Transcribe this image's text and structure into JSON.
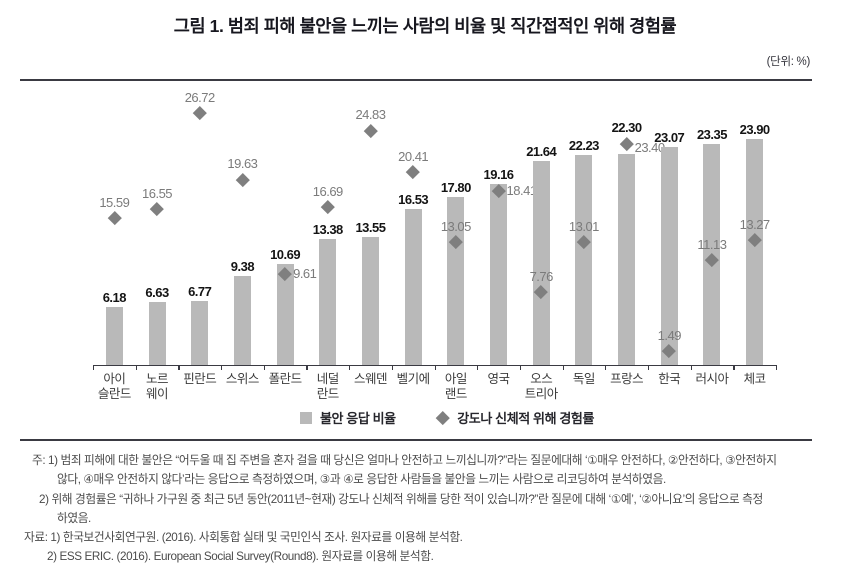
{
  "header": {
    "title": "그림 1. 범죄 피해 불안을 느끼는 사람의 비율 및 직간접적인 위해 경험률",
    "unit_note": "(단위: %)"
  },
  "chart_data": {
    "type": "bar",
    "title": "그림 1. 범죄 피해 불안을 느끼는 사람의 비율 및 직간접적인 위해 경험률",
    "unit": "%",
    "categories": [
      "아이슬란드",
      "노르웨이",
      "핀란드",
      "스위스",
      "폴란드",
      "네덜란드",
      "스웨덴",
      "벨기에",
      "아일랜드",
      "영국",
      "오스트리아",
      "독일",
      "프랑스",
      "한국",
      "러시아",
      "체코"
    ],
    "category_label_lines": [
      [
        "아이",
        "슬란드"
      ],
      [
        "노르",
        "웨이"
      ],
      [
        "핀란드"
      ],
      [
        "스위스"
      ],
      [
        "폴란드"
      ],
      [
        "네덜",
        "란드"
      ],
      [
        "스웨덴"
      ],
      [
        "벨기에"
      ],
      [
        "아일",
        "랜드"
      ],
      [
        "영국"
      ],
      [
        "오스",
        "트리아"
      ],
      [
        "독일"
      ],
      [
        "프랑스"
      ],
      [
        "한국"
      ],
      [
        "러시아"
      ],
      [
        "체코"
      ]
    ],
    "series": [
      {
        "name": "불안 응답 비율",
        "type": "bar",
        "color": "#b9b9b9",
        "values": [
          6.18,
          6.63,
          6.77,
          9.38,
          10.69,
          13.38,
          13.55,
          16.53,
          17.8,
          19.16,
          21.64,
          22.23,
          22.3,
          23.07,
          23.35,
          23.9
        ],
        "labels": [
          "6.18",
          "6.63",
          "6.77",
          "9.38",
          "10.69",
          "13.38",
          "13.55",
          "16.53",
          "17.80",
          "19.16",
          "21.64",
          "22.23",
          "22.30",
          "23.07",
          "23.35",
          "23.90"
        ]
      },
      {
        "name": "강도나 신체적 위해 경험률",
        "type": "scatter",
        "marker": "diamond",
        "color": "#7f7f7f",
        "values": [
          15.59,
          16.55,
          26.72,
          19.63,
          9.61,
          16.69,
          24.83,
          20.41,
          13.05,
          18.41,
          7.76,
          13.01,
          23.4,
          1.49,
          11.13,
          13.27
        ],
        "labels": [
          "15.59",
          "16.55",
          "26.72",
          "19.63",
          "9.61",
          "16.69",
          "24.83",
          "20.41",
          "13.05",
          "18.41",
          "7.76",
          "13.01",
          "23.40",
          "1.49",
          "11.13",
          "13.27"
        ]
      }
    ],
    "ylim": [
      0,
      28.5
    ],
    "grid": false,
    "legend_position": "bottom",
    "label_layout": {
      "diamond_label_pos": [
        "above",
        "above",
        "above",
        "above",
        "right",
        "above",
        "above",
        "above",
        "above",
        "right",
        "above",
        "above",
        "right",
        "above",
        "above",
        "above"
      ],
      "bar_label_above_diamond_index": 12
    }
  },
  "footnotes": {
    "lines": [
      {
        "text": "주: 1) 범죄 피해에 대한 불안은 “어두울 때 집 주변을 혼자 걸을 때 당신은 얼마나 안전하고 느끼십니까?”라는 질문에대해 ‘①매우 안전하다, ②안전하다, ③안전하지"
      },
      {
        "text": "않다, ④매우 안전하지 않다’라는 응답으로 측정하였으며, ③과 ④로 응답한 사람들을 불안을 느끼는 사람으로 리코딩하여 분석하였음."
      },
      {
        "text": "2) 위해 경험률은 “귀하나 가구원 중 최근 5년 동안(2011년~현재) 강도나 신체적 위해를 당한 적이 있습니까?”란 질문에 대해 ‘①예’, ‘②아니요’의 응답으로 측정"
      },
      {
        "text": "하였음."
      },
      {
        "text": "자료: 1) 한국보건사회연구원. (2016). 사회통합 실태 및 국민인식 조사. 원자료를 이용해 분석함."
      },
      {
        "text": "2) ESS ERIC. (2016). European Social Survey(Round8). 원자료를 이용해 분석함."
      }
    ]
  }
}
